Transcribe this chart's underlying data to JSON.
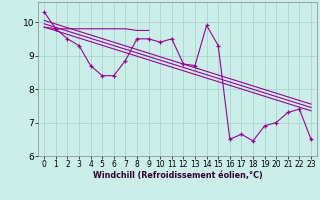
{
  "xlabel": "Windchill (Refroidissement éolien,°C)",
  "bg_color": "#cceee8",
  "grid_color": "#aad4ce",
  "line_color": "#990099",
  "xlim": [
    -0.5,
    23.5
  ],
  "ylim": [
    6.0,
    10.6
  ],
  "yticks": [
    6,
    7,
    8,
    9,
    10
  ],
  "xticks": [
    0,
    1,
    2,
    3,
    4,
    5,
    6,
    7,
    8,
    9,
    10,
    11,
    12,
    13,
    14,
    15,
    16,
    17,
    18,
    19,
    20,
    21,
    22,
    23
  ],
  "flat_line_x": [
    0,
    1,
    2,
    3,
    4,
    5,
    6,
    7,
    8,
    9
  ],
  "flat_line_y": [
    9.85,
    9.8,
    9.8,
    9.8,
    9.8,
    9.8,
    9.8,
    9.8,
    9.75,
    9.75
  ],
  "main_x": [
    0,
    1,
    2,
    3,
    4,
    5,
    6,
    7,
    8,
    9,
    10,
    11,
    12,
    13,
    14,
    15,
    16,
    17,
    18,
    19,
    20,
    21,
    22,
    23
  ],
  "main_y": [
    10.3,
    9.8,
    9.5,
    9.3,
    8.7,
    8.4,
    8.4,
    8.85,
    9.5,
    9.5,
    9.4,
    9.5,
    8.75,
    8.7,
    9.9,
    9.3,
    6.5,
    6.65,
    6.45,
    6.9,
    7.0,
    7.3,
    7.4,
    6.5
  ],
  "reg_lines": [
    [
      [
        0,
        23
      ],
      [
        10.05,
        7.55
      ]
    ],
    [
      [
        0,
        23
      ],
      [
        9.95,
        7.45
      ]
    ],
    [
      [
        0,
        23
      ],
      [
        9.85,
        7.35
      ]
    ]
  ]
}
